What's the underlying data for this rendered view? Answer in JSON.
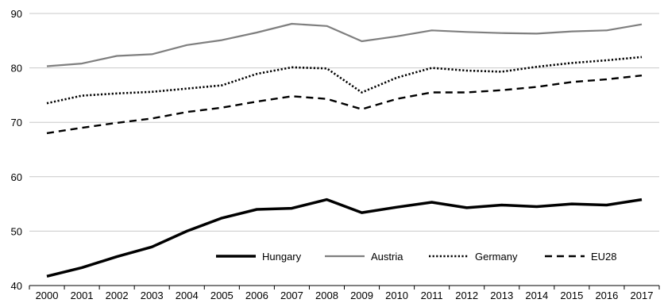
{
  "chart_data": {
    "type": "line",
    "title": "",
    "xlabel": "",
    "ylabel": "",
    "x": [
      "2000",
      "2001",
      "2002",
      "2003",
      "2004",
      "2005",
      "2006",
      "2007",
      "2008",
      "2009",
      "2010",
      "2011",
      "2012",
      "2013",
      "2014",
      "2015",
      "2016",
      "2017"
    ],
    "ylim": [
      40,
      90
    ],
    "yticks": [
      40,
      50,
      60,
      70,
      80,
      90
    ],
    "grid": "horizontal",
    "legend_position": "inside-bottom-right",
    "series": [
      {
        "name": "Hungary",
        "style": "solid-thick",
        "color": "#000000",
        "values": [
          41.7,
          43.3,
          45.3,
          47.1,
          50.0,
          52.4,
          54.0,
          54.2,
          55.8,
          53.4,
          54.4,
          55.3,
          54.3,
          54.8,
          54.5,
          55.0,
          54.8,
          55.8
        ]
      },
      {
        "name": "Austria",
        "style": "solid",
        "color": "#7f7f7f",
        "values": [
          80.3,
          80.8,
          82.2,
          82.5,
          84.2,
          85.1,
          86.5,
          88.1,
          87.7,
          84.9,
          85.8,
          86.9,
          86.6,
          86.4,
          86.3,
          86.7,
          86.9,
          88.0
        ]
      },
      {
        "name": "Germany",
        "style": "dotted",
        "color": "#000000",
        "values": [
          73.5,
          74.9,
          75.3,
          75.6,
          76.2,
          76.8,
          78.9,
          80.1,
          79.9,
          75.5,
          78.2,
          80.0,
          79.5,
          79.3,
          80.2,
          80.9,
          81.4,
          82.0
        ]
      },
      {
        "name": "EU28",
        "style": "dashed",
        "color": "#000000",
        "values": [
          68.0,
          69.0,
          69.9,
          70.7,
          71.9,
          72.7,
          73.8,
          74.8,
          74.3,
          72.4,
          74.3,
          75.5,
          75.5,
          75.9,
          76.5,
          77.4,
          77.9,
          78.6
        ]
      }
    ]
  }
}
